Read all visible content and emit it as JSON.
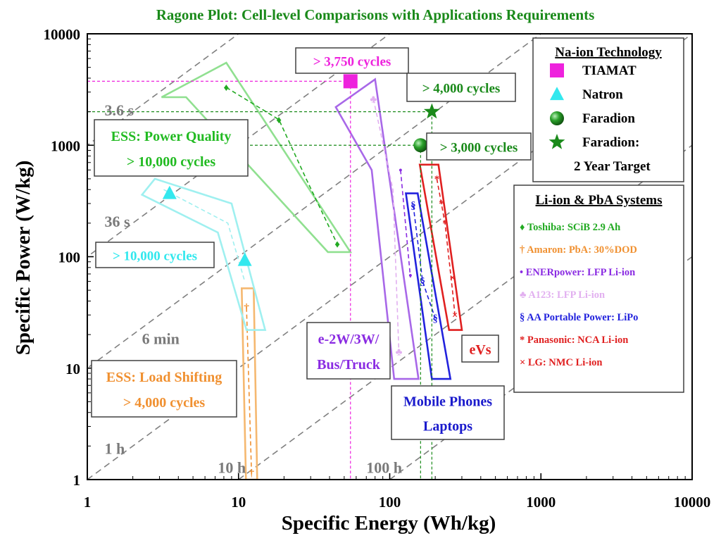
{
  "chart_data": {
    "type": "scatter",
    "title": "Ragone Plot: Cell-level Comparisons with Applications Requirements",
    "xlabel": "Specific Energy (Wh/kg)",
    "ylabel": "Specific Power (W/kg)",
    "xscale": "log",
    "yscale": "log",
    "xlim": [
      1,
      10000
    ],
    "ylim": [
      1,
      10000
    ],
    "x_ticks": [
      "1",
      "10",
      "100",
      "1000",
      "10000"
    ],
    "y_ticks": [
      "1",
      "10",
      "100",
      "1000",
      "10000"
    ],
    "grid": false,
    "time_lines": [
      {
        "label": "3.6 s",
        "hours": 0.001,
        "label_x": 1.3,
        "label_y": 1850
      },
      {
        "label": "36 s",
        "hours": 0.01,
        "label_x": 1.3,
        "label_y": 185
      },
      {
        "label": "6 min",
        "hours": 0.1,
        "label_x": 2.3,
        "label_y": 16.5
      },
      {
        "label": "1 h",
        "hours": 1,
        "label_x": 1.3,
        "label_y": 1.7
      },
      {
        "label": "10 h",
        "hours": 10,
        "label_x": 7.3,
        "label_y": 1.15
      },
      {
        "label": "100 h",
        "hours": 100,
        "label_x": 70,
        "label_y": 1.15
      }
    ],
    "regions": [
      {
        "name": "ess-power-quality",
        "color": "#90e090",
        "points": [
          [
            8.3,
            5500
          ],
          [
            55,
            110
          ],
          [
            39,
            110
          ],
          [
            4.5,
            2700
          ],
          [
            3.1,
            2700
          ]
        ]
      },
      {
        "name": "ess-power-quality-trend",
        "color": "#22aa22",
        "dashed": true,
        "open": true,
        "points": [
          [
            8.3,
            3300
          ],
          [
            18.5,
            1700
          ],
          [
            28,
            500
          ],
          [
            45,
            130
          ]
        ]
      },
      {
        "name": "ess-load-shifting",
        "color": "#f5b870",
        "points": [
          [
            10.5,
            52
          ],
          [
            12.6,
            52
          ],
          [
            13.3,
            1
          ],
          [
            11.2,
            1
          ]
        ]
      },
      {
        "name": "ess-load-shifting-trend",
        "color": "#f09030",
        "dashed": true,
        "open": true,
        "points": [
          [
            11.3,
            35
          ],
          [
            12.2,
            1.1
          ]
        ]
      },
      {
        "name": "grid-region-cyan",
        "color": "#9ff0f0",
        "points": [
          [
            2.8,
            500
          ],
          [
            9,
            300
          ],
          [
            15,
            22
          ],
          [
            11.3,
            22
          ],
          [
            7.3,
            165
          ],
          [
            2.3,
            360
          ]
        ]
      },
      {
        "name": "grid-region-cyan-trend",
        "color": "#9ff0f0",
        "dashed": true,
        "open": true,
        "points": [
          [
            3.2,
            400
          ],
          [
            8.5,
            200
          ],
          [
            11,
            60
          ]
        ]
      },
      {
        "name": "mobility-region",
        "color": "#a868e8",
        "points": [
          [
            44,
            2200
          ],
          [
            80,
            3900
          ],
          [
            155,
            8
          ],
          [
            107,
            8
          ],
          [
            76,
            600
          ]
        ]
      },
      {
        "name": "mobility-trend-enerpower",
        "color": "#8a2be2",
        "dashed": true,
        "open": true,
        "points": [
          [
            118,
            600
          ],
          [
            137,
            65
          ]
        ]
      },
      {
        "name": "mobility-trend-a123",
        "color": "#e2b0f0",
        "dashed": true,
        "open": true,
        "points": [
          [
            78,
            2600
          ],
          [
            105,
            400
          ],
          [
            115,
            14
          ]
        ]
      },
      {
        "name": "phones-laptops-region",
        "color": "#2222dd",
        "points": [
          [
            128,
            370
          ],
          [
            153,
            370
          ],
          [
            252,
            8
          ],
          [
            190,
            8
          ]
        ]
      },
      {
        "name": "phones-laptops-trend",
        "color": "#2222dd",
        "dashed": true,
        "open": true,
        "points": [
          [
            143,
            290
          ],
          [
            165,
            60
          ],
          [
            200,
            28
          ]
        ]
      },
      {
        "name": "evs-region",
        "color": "#e02020",
        "points": [
          [
            158,
            670
          ],
          [
            210,
            670
          ],
          [
            300,
            22
          ],
          [
            247,
            22
          ]
        ]
      },
      {
        "name": "evs-trend",
        "color": "#e02020",
        "dashed": true,
        "open": true,
        "points": [
          [
            205,
            500
          ],
          [
            232,
            200
          ],
          [
            260,
            50
          ],
          [
            270,
            30
          ]
        ]
      }
    ],
    "series": [
      {
        "name": "TIAMAT",
        "marker": "square",
        "color": "#ee22dd",
        "points": [
          [
            55,
            3750
          ]
        ]
      },
      {
        "name": "Natron",
        "marker": "triangle",
        "color": "#33e8ee",
        "points": [
          [
            3.5,
            370
          ],
          [
            11,
            93
          ]
        ]
      },
      {
        "name": "Faradion",
        "marker": "sphere",
        "color": "#1a8a1a",
        "points": [
          [
            160,
            1000
          ]
        ]
      },
      {
        "name": "Faradion: 2 Year Target",
        "marker": "star",
        "color": "#1a8a1a",
        "points": [
          [
            190,
            2000
          ]
        ]
      },
      {
        "name": "Toshiba: SCiB 2.9 Ah",
        "marker": "glyph",
        "glyph": "♦",
        "color": "#22aa22",
        "points": [
          [
            8.3,
            3300
          ],
          [
            18.5,
            1700
          ],
          [
            45,
            130
          ]
        ]
      },
      {
        "name": "Amaron: PbA: 30%DOD",
        "marker": "glyph",
        "glyph": "†",
        "color": "#f09030",
        "points": [
          [
            11.3,
            35
          ],
          [
            12.2,
            1.15
          ]
        ]
      },
      {
        "name": "ENERpower: LFP Li-ion",
        "marker": "glyph",
        "glyph": "•",
        "color": "#8a2be2",
        "points": [
          [
            118,
            600
          ],
          [
            137,
            68
          ]
        ]
      },
      {
        "name": "A123: LFP Li-ion",
        "marker": "glyph",
        "glyph": "♣",
        "color": "#e2b0f0",
        "points": [
          [
            78,
            2600
          ],
          [
            115,
            14
          ]
        ]
      },
      {
        "name": "AA Portable Power: LiPo",
        "marker": "glyph",
        "glyph": "§",
        "color": "#2222dd",
        "points": [
          [
            143,
            290
          ],
          [
            165,
            60
          ],
          [
            200,
            28
          ]
        ]
      },
      {
        "name": "Panasonic: NCA Li-ion",
        "marker": "glyph",
        "glyph": "*",
        "color": "#e02020",
        "points": [
          [
            205,
            500
          ],
          [
            220,
            300
          ],
          [
            232,
            200
          ]
        ]
      },
      {
        "name": "LG: NMC Li-ion",
        "marker": "glyph",
        "glyph": "×",
        "color": "#e02020",
        "points": [
          [
            260,
            65
          ],
          [
            270,
            30
          ]
        ]
      }
    ],
    "reference_lines": [
      {
        "name": "tiamat-ref",
        "color": "#ee22dd",
        "x": 55,
        "y": 3750
      },
      {
        "name": "faradion-target-ref",
        "color": "#1a8a1a",
        "x": 190,
        "y": 2000
      },
      {
        "name": "faradion-ref",
        "color": "#1a8a1a",
        "x": 160,
        "y": 1000
      }
    ],
    "annotations": [
      {
        "name": "tiamat-cycles",
        "text": "> 3,750 cycles",
        "color": "#ee22dd"
      },
      {
        "name": "faradion-target-cycles",
        "text": "> 4,000 cycles",
        "color": "#1a8a1a"
      },
      {
        "name": "faradion-cycles",
        "text": "> 3,000 cycles",
        "color": "#1a8a1a"
      },
      {
        "name": "natron-cycles",
        "text": "> 10,000 cycles",
        "color": "#33e8ee"
      },
      {
        "name": "ess-power-quality",
        "lines": [
          "ESS: Power Quality",
          "> 10,000 cycles"
        ],
        "color": "#22bb22"
      },
      {
        "name": "ess-load-shifting",
        "lines": [
          "ESS: Load Shifting",
          "> 4,000 cycles"
        ],
        "color": "#f09030"
      },
      {
        "name": "mobility",
        "lines": [
          "e-2W/3W/",
          "Bus/Truck"
        ],
        "color": "#8a2be2"
      },
      {
        "name": "phones-laptops",
        "lines": [
          "Mobile Phones",
          "Laptops"
        ],
        "color": "#1a1acc"
      },
      {
        "name": "evs",
        "text": "eVs",
        "color": "#e02020"
      }
    ],
    "legend_na": {
      "title": "Na-ion Technology",
      "items": [
        {
          "label": "TIAMAT",
          "marker": "square",
          "color": "#ee22dd"
        },
        {
          "label": "Natron",
          "marker": "triangle",
          "color": "#33e8ee"
        },
        {
          "label": "Faradion",
          "marker": "sphere",
          "color": "#1a8a1a"
        },
        {
          "label": "Faradion:",
          "marker": "star",
          "color": "#1a8a1a"
        },
        {
          "label": "2 Year Target",
          "marker": "none",
          "color": "#000000"
        }
      ]
    },
    "legend_li": {
      "title": "Li-ion & PbA Systems",
      "items": [
        {
          "label": "♦ Toshiba: SCiB 2.9 Ah",
          "color": "#22aa22"
        },
        {
          "label": "† Amaron: PbA: 30%DOD",
          "color": "#f09030"
        },
        {
          "label": "• ENERpower: LFP Li-ion",
          "color": "#8a2be2"
        },
        {
          "label": "♣ A123: LFP Li-ion",
          "color": "#e2b0f0"
        },
        {
          "label": "§ AA Portable Power: LiPo",
          "color": "#2222dd"
        },
        {
          "label": "* Panasonic: NCA Li-ion",
          "color": "#e02020"
        },
        {
          "label": "× LG: NMC Li-ion",
          "color": "#e02020"
        }
      ]
    }
  }
}
